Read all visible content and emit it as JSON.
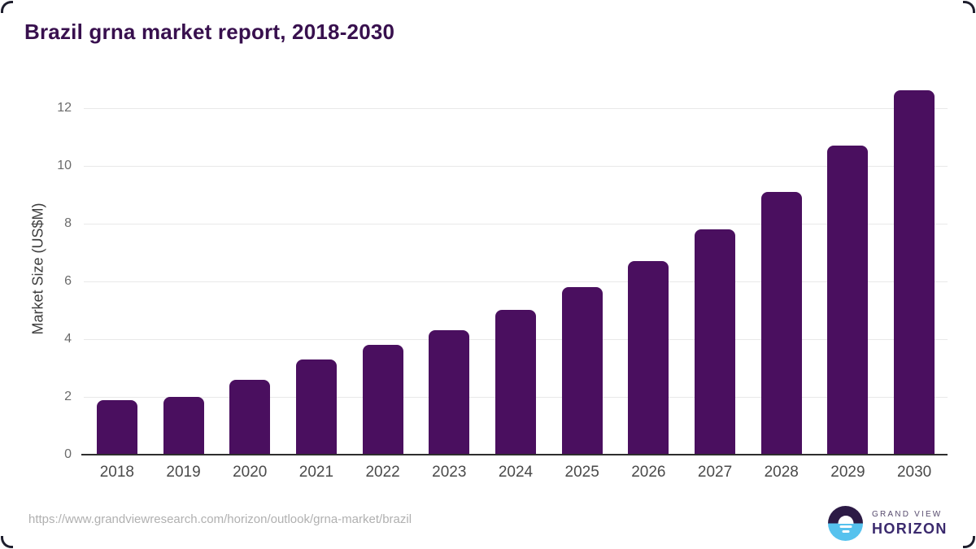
{
  "page": {
    "title": "Brazil grna market report, 2018-2030"
  },
  "chart_data": {
    "type": "bar",
    "title": "Brazil grna market report, 2018-2030",
    "categories": [
      "2018",
      "2019",
      "2020",
      "2021",
      "2022",
      "2023",
      "2024",
      "2025",
      "2026",
      "2027",
      "2028",
      "2029",
      "2030"
    ],
    "values": [
      1.9,
      2.0,
      2.6,
      3.3,
      3.8,
      4.3,
      5.0,
      5.8,
      6.7,
      7.8,
      9.1,
      10.7,
      12.6
    ],
    "xlabel": "",
    "ylabel": "Market Size (US$M)",
    "yticks": [
      0,
      2,
      4,
      6,
      8,
      10,
      12
    ],
    "ylim": [
      0,
      12.95
    ],
    "grid": "horizontal-only",
    "legend": "none",
    "bar_color": "#4a0f5f"
  },
  "colors": {
    "title": "#38104e",
    "bar": "#4a0f5f",
    "gridline": "#e9e9e9",
    "axis_line": "#2e2e2e",
    "tick_label": "#4a4a4a",
    "logo_blue": "#56c2ee",
    "logo_dark": "#2c1a45"
  },
  "footer": {
    "source_url": "https://www.grandviewresearch.com/horizon/outlook/grna-market/brazil",
    "logo": {
      "brand_line1": "GRAND VIEW",
      "brand_line2": "HORIZON"
    }
  }
}
